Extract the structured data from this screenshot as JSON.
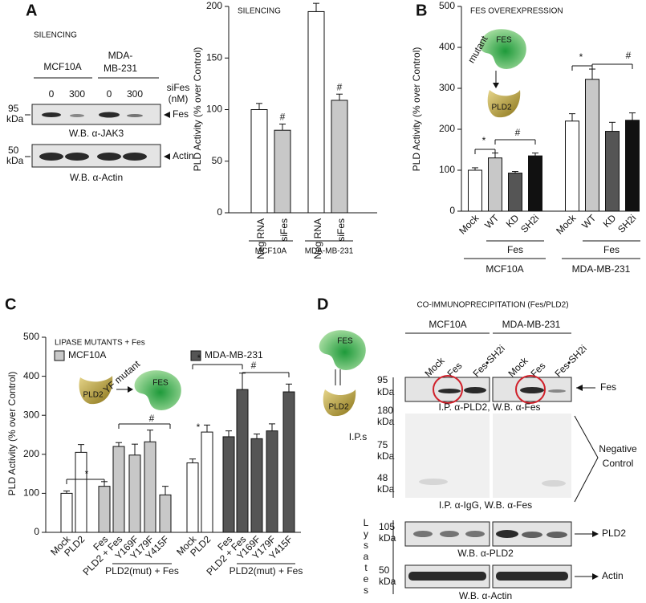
{
  "panel_labels": [
    "A",
    "B",
    "C",
    "D"
  ],
  "chart_data": [
    {
      "type": "bar",
      "title": "SILENCING",
      "ylabel": "PLD Activity (% over Control)",
      "categories": [
        "Neg RNA",
        "siFes",
        "Neg RNA",
        "siFes"
      ],
      "values": [
        100,
        80,
        195,
        109
      ],
      "errors": [
        6,
        6,
        8,
        6
      ],
      "colors": [
        "#ffffff",
        "#c8c8c8",
        "#ffffff",
        "#c8c8c8"
      ],
      "ylim": [
        0,
        200
      ],
      "yticks": [
        0,
        50,
        100,
        150,
        200
      ],
      "group_labels": [
        "MCF10A",
        "MDA-MB-231"
      ],
      "annotations": [
        "#",
        "#"
      ]
    },
    {
      "type": "bar",
      "title": "FES OVEREXPRESSION",
      "ylabel": "PLD  Activity (% over Control)",
      "categories": [
        "Mock",
        "WT",
        "KD",
        "SH2i",
        "Mock",
        "WT",
        "KD",
        "SH2i"
      ],
      "values": [
        100,
        130,
        93,
        135,
        220,
        322,
        195,
        222
      ],
      "errors": [
        6,
        12,
        4,
        7,
        18,
        25,
        22,
        18
      ],
      "colors": [
        "#ffffff",
        "#c8c8c8",
        "#555555",
        "#111111",
        "#ffffff",
        "#c8c8c8",
        "#555555",
        "#111111"
      ],
      "ylim": [
        0,
        500
      ],
      "yticks": [
        0,
        100,
        200,
        300,
        400,
        500
      ],
      "group_labels": [
        "Fes",
        "Fes"
      ],
      "cell_lines": [
        "MCF10A",
        "MDA-MB-231"
      ],
      "annotations": [
        "*",
        "#",
        "*",
        "#"
      ]
    },
    {
      "type": "bar",
      "title": "LIPASE MUTANTS + Fes",
      "ylabel": "PLD  Activity (% over Control)",
      "categories": [
        "Mock",
        "PLD2",
        "Fes",
        "PLD2 + Fes",
        "Y169F",
        "Y179F",
        "Y415F",
        "Mock",
        "PLD2",
        "Fes",
        "PLD2 + Fes",
        "Y169F",
        "Y179F",
        "Y415F"
      ],
      "values": [
        100,
        205,
        118,
        220,
        198,
        232,
        96,
        178,
        257,
        245,
        366,
        240,
        260,
        360
      ],
      "errors": [
        6,
        20,
        12,
        10,
        28,
        30,
        22,
        10,
        18,
        15,
        42,
        12,
        18,
        20
      ],
      "colors": [
        "#ffffff",
        "#ffffff",
        "#c8c8c8",
        "#c8c8c8",
        "#c8c8c8",
        "#c8c8c8",
        "#c8c8c8",
        "#ffffff",
        "#ffffff",
        "#555555",
        "#555555",
        "#555555",
        "#555555",
        "#555555"
      ],
      "ylim": [
        0,
        500
      ],
      "yticks": [
        0,
        100,
        200,
        300,
        400,
        500
      ],
      "group_labels": [
        "PLD2(mut) + Fes",
        "PLD2(mut) + Fes"
      ],
      "legend": [
        {
          "name": "MCF10A",
          "color": "#c8c8c8"
        },
        {
          "name": "MDA-MB-231",
          "color": "#555555"
        }
      ],
      "annotations": [
        "*",
        "#",
        "*",
        "#",
        "*"
      ]
    }
  ],
  "panel_a": {
    "title": "SILENCING",
    "cell_lines": [
      "MCF10A",
      "MDA-",
      "MB-231"
    ],
    "dose_label": [
      "siFes",
      "(nM)"
    ],
    "doses": [
      "0",
      "300",
      "0",
      "300"
    ],
    "blots": [
      {
        "kda": [
          "95",
          "kDa"
        ],
        "target": "Fes",
        "caption": "W.B. α-JAK3"
      },
      {
        "kda": [
          "50",
          "kDa"
        ],
        "target": "Actin",
        "caption": "W.B. α-Actin"
      }
    ]
  },
  "panel_b": {
    "diagram": {
      "mutant": "mutant",
      "fes": "FES",
      "pld2": "PLD2"
    }
  },
  "panel_c": {
    "diagram": {
      "mutant": "YF mutant",
      "fes": "FES",
      "pld2": "PLD2"
    }
  },
  "panel_d": {
    "title": "CO-IMMUNOPRECIPITATION (Fes/PLD2)",
    "cell_lines": [
      "MCF10A",
      "MDA-MB-231"
    ],
    "lanes": [
      "Mock",
      "Fes",
      "Fes•SH2i",
      "Mock",
      "Fes",
      "Fes•SH2i"
    ],
    "diagram": {
      "fes": "FES",
      "pld2": "PLD2"
    },
    "ips": "I.P.s",
    "lysates": [
      "L",
      "y",
      "s",
      "a",
      "t",
      "e",
      "s"
    ],
    "blots": [
      {
        "kda": [
          [
            "95",
            "kDa"
          ]
        ],
        "target": "Fes",
        "caption": "I.P. α-PLD2, W.B. α-Fes"
      },
      {
        "kda": [
          [
            "180",
            "kDa"
          ],
          [
            "75",
            "kDa"
          ],
          [
            "48",
            "kDa"
          ]
        ],
        "target": [
          "Negative",
          "Control"
        ],
        "caption": "I.P. α-IgG, W.B. α-Fes"
      },
      {
        "kda": [
          [
            "105",
            "kDa"
          ]
        ],
        "target": "PLD2",
        "caption": "W.B.  α-PLD2"
      },
      {
        "kda": [
          [
            "50",
            "kDa"
          ]
        ],
        "target": "Actin",
        "caption": "W.B.  α-Actin"
      }
    ]
  }
}
